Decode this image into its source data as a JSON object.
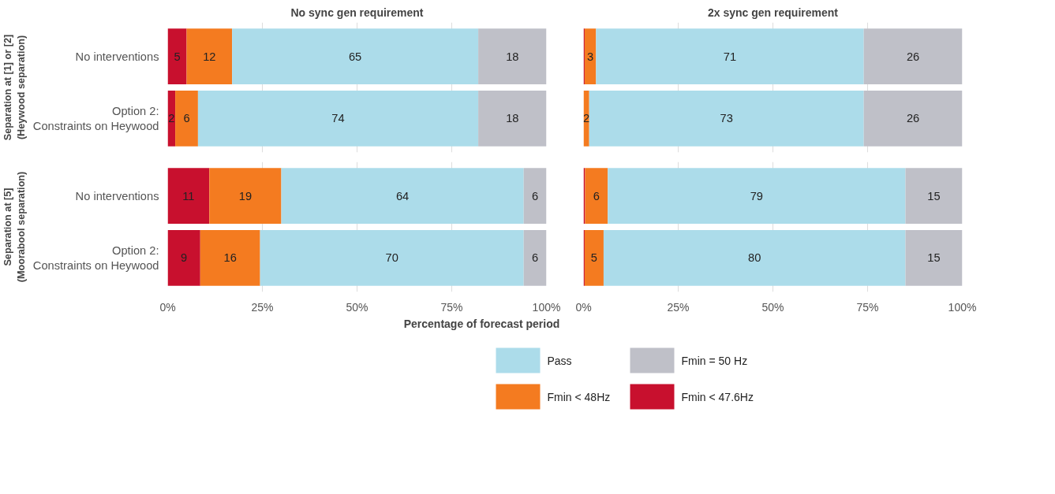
{
  "chart_data": [
    {
      "type": "bar",
      "orientation": "horizontal",
      "stacked": true,
      "title": "No sync gen requirement",
      "ylabel": "Separation at [1] or [2]\n(Heywood separation)",
      "categories": [
        "No interventions",
        "Option 2:\nConstraints on Heywood"
      ],
      "xlim": [
        0,
        100
      ],
      "xticks": [
        0,
        25,
        50,
        75,
        100
      ],
      "grid": "x",
      "tick_labels": "y",
      "series": [
        {
          "color": "#c8102e",
          "values": [
            5,
            2
          ],
          "value_labels": [
            "5",
            "2"
          ]
        },
        {
          "color": "#f47b20",
          "values": [
            12,
            6
          ],
          "value_labels": [
            "12",
            "6"
          ]
        },
        {
          "color": "#acdcea",
          "values": [
            65,
            74
          ],
          "value_labels": [
            "65",
            "74"
          ]
        },
        {
          "color": "#bfc0c8",
          "values": [
            18,
            18
          ],
          "value_labels": [
            "18",
            "18"
          ]
        }
      ]
    },
    {
      "type": "bar",
      "orientation": "horizontal",
      "stacked": true,
      "title": "2x sync gen requirement",
      "categories": [
        null,
        null
      ],
      "xlim": [
        0,
        100
      ],
      "xticks": [
        0,
        25,
        50,
        75,
        100
      ],
      "grid": "x",
      "tick_labels": false,
      "series": [
        {
          "color": "#c8102e",
          "values": [
            0.3,
            null
          ],
          "value_labels": [
            null,
            null
          ]
        },
        {
          "color": "#f47b20",
          "values": [
            3,
            1.5
          ],
          "value_labels": [
            "3",
            "2"
          ]
        },
        {
          "color": "#acdcea",
          "values": [
            70.7,
            72.5
          ],
          "value_labels": [
            "71",
            "73"
          ]
        },
        {
          "color": "#bfc0c8",
          "values": [
            26,
            26
          ],
          "value_labels": [
            "26",
            "26"
          ]
        }
      ]
    },
    {
      "type": "bar",
      "orientation": "horizontal",
      "stacked": true,
      "ylabel": "Separation at [5]\n(Moorabool separation)",
      "xlabel": "Percentage of forecast period",
      "categories": [
        "No interventions",
        "Option 2:\nConstraints on Heywood"
      ],
      "xlim": [
        0,
        100
      ],
      "xticks": [
        {
          "value": 0,
          "label": "0%"
        },
        {
          "value": 25,
          "label": "25%"
        },
        {
          "value": 50,
          "label": "50%"
        },
        {
          "value": 75,
          "label": "75%"
        },
        {
          "value": 100,
          "label": "100%"
        }
      ],
      "grid": "x",
      "series": [
        {
          "color": "#c8102e",
          "values": [
            11,
            8.6
          ],
          "value_labels": [
            "11",
            "9"
          ]
        },
        {
          "color": "#f47b20",
          "values": [
            19,
            15.8
          ],
          "value_labels": [
            "19",
            "16"
          ]
        },
        {
          "color": "#acdcea",
          "values": [
            64,
            69.6
          ],
          "value_labels": [
            "64",
            "70"
          ]
        },
        {
          "color": "#bfc0c8",
          "values": [
            6,
            6
          ],
          "value_labels": [
            "6",
            "6"
          ]
        }
      ]
    },
    {
      "type": "bar",
      "orientation": "horizontal",
      "stacked": true,
      "categories": [
        null,
        null
      ],
      "xlim": [
        0,
        100
      ],
      "xticks": [
        {
          "value": 0,
          "label": "0%"
        },
        {
          "value": 25,
          "label": "25%"
        },
        {
          "value": 50,
          "label": "50%"
        },
        {
          "value": 75,
          "label": "75%"
        },
        {
          "value": 100,
          "label": "100%"
        }
      ],
      "grid": "x",
      "tick_labels": "x",
      "legend": "bottom",
      "series": [
        {
          "name": "Fmin < 47.6Hz",
          "color": "#c8102e",
          "values": [
            0.4,
            0.3
          ],
          "value_labels": [
            null,
            null
          ]
        },
        {
          "name": "Fmin < 48Hz",
          "color": "#f47b20",
          "values": [
            6,
            5
          ],
          "value_labels": [
            "6",
            "5"
          ]
        },
        {
          "name": "Pass",
          "color": "#acdcea",
          "values": [
            78.6,
            79.7
          ],
          "value_labels": [
            "79",
            "80"
          ]
        },
        {
          "name": "Fmin = 50 Hz",
          "color": "#bfc0c8",
          "values": [
            15,
            15
          ],
          "value_labels": [
            "15",
            "15"
          ]
        }
      ]
    }
  ]
}
